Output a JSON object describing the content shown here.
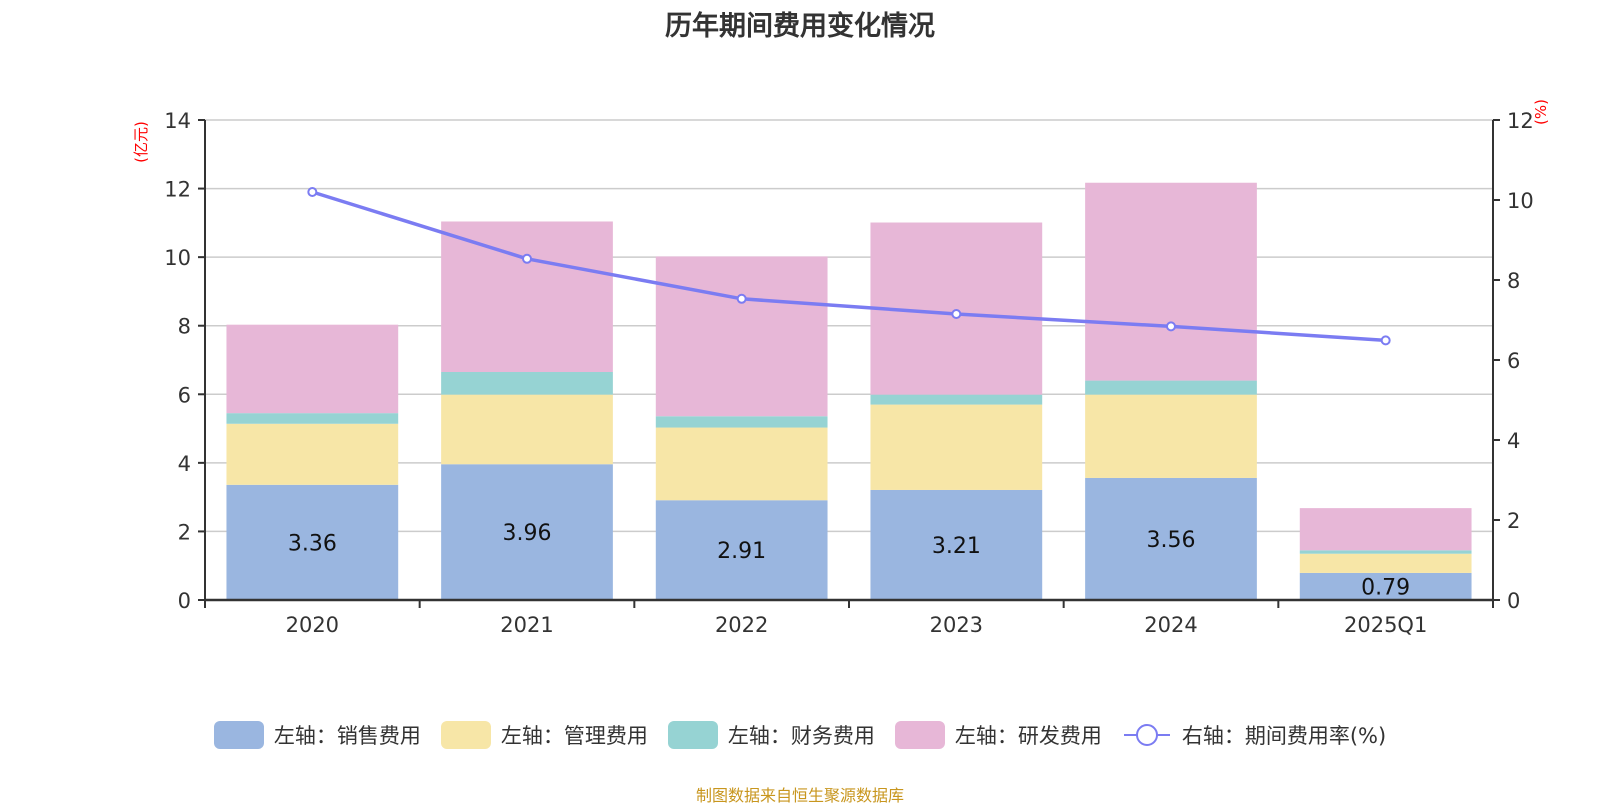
{
  "chart_data": {
    "type": "bar",
    "title": "历年期间费用变化情况",
    "categories": [
      "2020",
      "2021",
      "2022",
      "2023",
      "2024",
      "2025Q1"
    ],
    "series": [
      {
        "name": "左轴：销售费用",
        "type": "bar",
        "axis": "left",
        "color": "#9ab6e0",
        "values": [
          3.36,
          3.96,
          2.91,
          3.21,
          3.56,
          0.79
        ],
        "show_labels": true
      },
      {
        "name": "左轴：管理费用",
        "type": "bar",
        "axis": "left",
        "color": "#f7e6a7",
        "values": [
          1.78,
          2.03,
          2.12,
          2.49,
          2.43,
          0.56
        ],
        "show_labels": false
      },
      {
        "name": "左轴：财务费用",
        "type": "bar",
        "axis": "left",
        "color": "#96d3d3",
        "values": [
          0.31,
          0.66,
          0.33,
          0.29,
          0.41,
          0.1
        ],
        "show_labels": false
      },
      {
        "name": "左轴：研发费用",
        "type": "bar",
        "axis": "left",
        "color": "#e7b7d7",
        "values": [
          2.58,
          4.39,
          4.66,
          5.02,
          5.77,
          1.23
        ],
        "show_labels": false
      },
      {
        "name": "右轴：期间费用率(%)",
        "type": "line",
        "axis": "right",
        "color": "#7b7cf2",
        "values": [
          10.2,
          8.53,
          7.53,
          7.15,
          6.84,
          6.49
        ]
      }
    ],
    "y_left": {
      "label": "(亿元)",
      "ylim": [
        0,
        14
      ],
      "ticks": [
        "0",
        "2",
        "4",
        "6",
        "8",
        "10",
        "12",
        "14"
      ]
    },
    "y_right": {
      "label": "(%)",
      "ylim": [
        0,
        12
      ],
      "ticks": [
        "0",
        "2",
        "4",
        "6",
        "8",
        "10",
        "12"
      ]
    },
    "grid": true,
    "legend_position": "bottom",
    "stacked": true
  },
  "footer": "制图数据来自恒生聚源数据库"
}
